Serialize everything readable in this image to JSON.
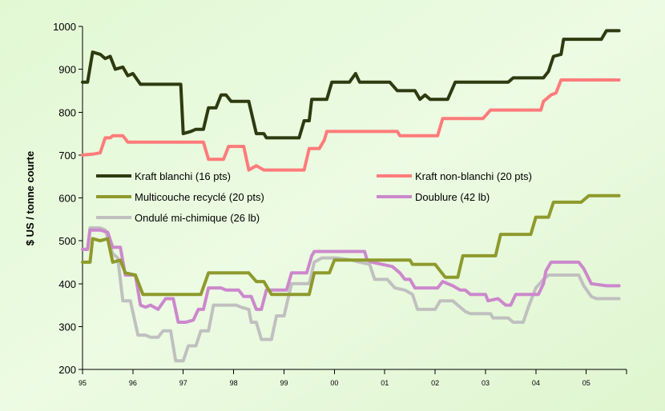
{
  "chart_data": {
    "type": "line",
    "title": "",
    "xlabel": "",
    "ylabel": "$ US / tonne courte",
    "ylim": [
      200,
      1000
    ],
    "yticks": [
      200,
      300,
      400,
      500,
      600,
      700,
      800,
      900,
      1000
    ],
    "xlim": [
      1995,
      2005.8
    ],
    "xticks": [
      {
        "label": "95",
        "value": 1995
      },
      {
        "label": "96",
        "value": 1996
      },
      {
        "label": "97",
        "value": 1997
      },
      {
        "label": "98",
        "value": 1998
      },
      {
        "label": "99",
        "value": 1999
      },
      {
        "label": "00",
        "value": 2000
      },
      {
        "label": "01",
        "value": 2001
      },
      {
        "label": "02",
        "value": 2002
      },
      {
        "label": "03",
        "value": 2003
      },
      {
        "label": "04",
        "value": 2004
      },
      {
        "label": "05",
        "value": 2005
      }
    ],
    "grid": false,
    "legend": "inside-middle",
    "series": [
      {
        "name": "Kraft blanchi (16 pts)",
        "color": "#2e3a10",
        "points": [
          [
            1995.0,
            870
          ],
          [
            1995.1,
            870
          ],
          [
            1995.2,
            940
          ],
          [
            1995.35,
            935
          ],
          [
            1995.45,
            925
          ],
          [
            1995.55,
            930
          ],
          [
            1995.65,
            900
          ],
          [
            1995.8,
            905
          ],
          [
            1995.9,
            885
          ],
          [
            1996.0,
            890
          ],
          [
            1996.15,
            865
          ],
          [
            1996.6,
            865
          ],
          [
            1996.95,
            865
          ],
          [
            1997.0,
            750
          ],
          [
            1997.15,
            755
          ],
          [
            1997.25,
            760
          ],
          [
            1997.4,
            760
          ],
          [
            1997.5,
            810
          ],
          [
            1997.65,
            810
          ],
          [
            1997.75,
            840
          ],
          [
            1997.85,
            840
          ],
          [
            1997.95,
            825
          ],
          [
            1998.3,
            825
          ],
          [
            1998.45,
            750
          ],
          [
            1998.6,
            750
          ],
          [
            1998.65,
            740
          ],
          [
            1999.3,
            740
          ],
          [
            1999.4,
            780
          ],
          [
            1999.5,
            780
          ],
          [
            1999.55,
            830
          ],
          [
            1999.85,
            830
          ],
          [
            1999.95,
            870
          ],
          [
            2000.3,
            870
          ],
          [
            2000.42,
            890
          ],
          [
            2000.5,
            870
          ],
          [
            2001.1,
            870
          ],
          [
            2001.25,
            850
          ],
          [
            2001.6,
            850
          ],
          [
            2001.7,
            830
          ],
          [
            2001.8,
            840
          ],
          [
            2001.9,
            830
          ],
          [
            2002.25,
            830
          ],
          [
            2002.4,
            870
          ],
          [
            2003.45,
            870
          ],
          [
            2003.55,
            880
          ],
          [
            2004.15,
            880
          ],
          [
            2004.25,
            895
          ],
          [
            2004.35,
            930
          ],
          [
            2004.5,
            935
          ],
          [
            2004.55,
            970
          ],
          [
            2005.3,
            970
          ],
          [
            2005.4,
            990
          ],
          [
            2005.65,
            990
          ]
        ]
      },
      {
        "name": "Kraft non-blanchi (20 pts)",
        "color": "#ff7b7b",
        "points": [
          [
            1995.0,
            700
          ],
          [
            1995.2,
            702
          ],
          [
            1995.35,
            705
          ],
          [
            1995.45,
            740
          ],
          [
            1995.55,
            740
          ],
          [
            1995.6,
            745
          ],
          [
            1995.8,
            745
          ],
          [
            1995.9,
            730
          ],
          [
            1996.0,
            730
          ],
          [
            1996.9,
            730
          ],
          [
            1997.4,
            730
          ],
          [
            1997.5,
            690
          ],
          [
            1997.8,
            690
          ],
          [
            1997.9,
            720
          ],
          [
            1998.2,
            720
          ],
          [
            1998.3,
            665
          ],
          [
            1998.45,
            675
          ],
          [
            1998.6,
            665
          ],
          [
            1999.4,
            665
          ],
          [
            1999.5,
            715
          ],
          [
            1999.7,
            715
          ],
          [
            1999.8,
            735
          ],
          [
            1999.85,
            755
          ],
          [
            2001.25,
            755
          ],
          [
            2001.3,
            745
          ],
          [
            2002.05,
            745
          ],
          [
            2002.15,
            785
          ],
          [
            2002.95,
            785
          ],
          [
            2003.1,
            805
          ],
          [
            2004.1,
            805
          ],
          [
            2004.15,
            825
          ],
          [
            2004.3,
            840
          ],
          [
            2004.4,
            845
          ],
          [
            2004.5,
            875
          ],
          [
            2005.65,
            875
          ]
        ]
      },
      {
        "name": "Multicouche recyclé (20 pts)",
        "color": "#8e9a2c",
        "points": [
          [
            1995.0,
            450
          ],
          [
            1995.15,
            450
          ],
          [
            1995.2,
            505
          ],
          [
            1995.35,
            500
          ],
          [
            1995.5,
            505
          ],
          [
            1995.6,
            450
          ],
          [
            1995.75,
            455
          ],
          [
            1995.85,
            425
          ],
          [
            1996.05,
            420
          ],
          [
            1996.2,
            375
          ],
          [
            1996.35,
            375
          ],
          [
            1997.35,
            375
          ],
          [
            1997.5,
            425
          ],
          [
            1998.3,
            425
          ],
          [
            1998.45,
            405
          ],
          [
            1998.6,
            405
          ],
          [
            1998.75,
            375
          ],
          [
            1999.5,
            375
          ],
          [
            1999.6,
            425
          ],
          [
            1999.9,
            425
          ],
          [
            2000.0,
            455
          ],
          [
            2001.0,
            455
          ],
          [
            2001.1,
            455
          ],
          [
            2001.5,
            455
          ],
          [
            2001.55,
            445
          ],
          [
            2002.0,
            445
          ],
          [
            2002.1,
            430
          ],
          [
            2002.2,
            415
          ],
          [
            2002.45,
            415
          ],
          [
            2002.55,
            465
          ],
          [
            2002.85,
            465
          ],
          [
            2003.2,
            465
          ],
          [
            2003.3,
            515
          ],
          [
            2003.9,
            515
          ],
          [
            2004.0,
            555
          ],
          [
            2004.25,
            555
          ],
          [
            2004.35,
            590
          ],
          [
            2004.9,
            590
          ],
          [
            2005.05,
            605
          ],
          [
            2005.65,
            605
          ]
        ]
      },
      {
        "name": "Doublure (42 lb)",
        "color": "#cc88cc",
        "points": [
          [
            1995.0,
            480
          ],
          [
            1995.1,
            480
          ],
          [
            1995.15,
            525
          ],
          [
            1995.35,
            525
          ],
          [
            1995.5,
            520
          ],
          [
            1995.6,
            485
          ],
          [
            1995.75,
            485
          ],
          [
            1995.85,
            420
          ],
          [
            1996.05,
            420
          ],
          [
            1996.15,
            350
          ],
          [
            1996.25,
            345
          ],
          [
            1996.35,
            350
          ],
          [
            1996.5,
            340
          ],
          [
            1996.65,
            365
          ],
          [
            1996.8,
            365
          ],
          [
            1996.9,
            310
          ],
          [
            1997.05,
            310
          ],
          [
            1997.2,
            315
          ],
          [
            1997.3,
            340
          ],
          [
            1997.4,
            340
          ],
          [
            1997.5,
            390
          ],
          [
            1997.75,
            390
          ],
          [
            1997.85,
            385
          ],
          [
            1998.1,
            385
          ],
          [
            1998.2,
            370
          ],
          [
            1998.35,
            370
          ],
          [
            1998.45,
            340
          ],
          [
            1998.55,
            340
          ],
          [
            1998.65,
            385
          ],
          [
            1999.05,
            385
          ],
          [
            1999.15,
            425
          ],
          [
            1999.45,
            425
          ],
          [
            1999.55,
            465
          ],
          [
            1999.6,
            475
          ],
          [
            2000.05,
            475
          ],
          [
            2000.6,
            475
          ],
          [
            2000.65,
            455
          ],
          [
            2000.75,
            450
          ],
          [
            2001.15,
            440
          ],
          [
            2001.3,
            425
          ],
          [
            2001.4,
            410
          ],
          [
            2001.5,
            410
          ],
          [
            2001.6,
            390
          ],
          [
            2001.8,
            390
          ],
          [
            2002.05,
            390
          ],
          [
            2002.15,
            405
          ],
          [
            2002.35,
            395
          ],
          [
            2002.5,
            385
          ],
          [
            2002.6,
            385
          ],
          [
            2002.7,
            375
          ],
          [
            2003.0,
            375
          ],
          [
            2003.05,
            360
          ],
          [
            2003.25,
            365
          ],
          [
            2003.4,
            350
          ],
          [
            2003.5,
            350
          ],
          [
            2003.6,
            375
          ],
          [
            2004.05,
            375
          ],
          [
            2004.15,
            400
          ],
          [
            2004.2,
            430
          ],
          [
            2004.3,
            450
          ],
          [
            2004.85,
            450
          ],
          [
            2004.95,
            435
          ],
          [
            2005.1,
            400
          ],
          [
            2005.4,
            395
          ],
          [
            2005.65,
            395
          ]
        ]
      },
      {
        "name": "Ondulé mi-chimique (26 lb)",
        "color": "#c0c0c0",
        "points": [
          [
            1995.0,
            480
          ],
          [
            1995.1,
            480
          ],
          [
            1995.15,
            530
          ],
          [
            1995.35,
            530
          ],
          [
            1995.45,
            525
          ],
          [
            1995.6,
            470
          ],
          [
            1995.7,
            460
          ],
          [
            1995.8,
            360
          ],
          [
            1995.95,
            360
          ],
          [
            1996.1,
            280
          ],
          [
            1996.25,
            280
          ],
          [
            1996.35,
            275
          ],
          [
            1996.5,
            275
          ],
          [
            1996.6,
            290
          ],
          [
            1996.75,
            290
          ],
          [
            1996.85,
            220
          ],
          [
            1997.0,
            220
          ],
          [
            1997.1,
            255
          ],
          [
            1997.25,
            255
          ],
          [
            1997.35,
            290
          ],
          [
            1997.5,
            290
          ],
          [
            1997.6,
            350
          ],
          [
            1998.05,
            350
          ],
          [
            1998.15,
            345
          ],
          [
            1998.3,
            340
          ],
          [
            1998.35,
            310
          ],
          [
            1998.45,
            310
          ],
          [
            1998.55,
            270
          ],
          [
            1998.75,
            270
          ],
          [
            1998.85,
            325
          ],
          [
            1999.0,
            325
          ],
          [
            1999.15,
            400
          ],
          [
            1999.5,
            400
          ],
          [
            1999.6,
            450
          ],
          [
            1999.75,
            460
          ],
          [
            2000.05,
            460
          ],
          [
            2000.35,
            455
          ],
          [
            2000.5,
            450
          ],
          [
            2000.7,
            445
          ],
          [
            2000.8,
            410
          ],
          [
            2001.05,
            410
          ],
          [
            2001.2,
            390
          ],
          [
            2001.4,
            385
          ],
          [
            2001.55,
            375
          ],
          [
            2001.65,
            340
          ],
          [
            2002.0,
            340
          ],
          [
            2002.1,
            360
          ],
          [
            2002.35,
            360
          ],
          [
            2002.45,
            350
          ],
          [
            2002.6,
            335
          ],
          [
            2002.7,
            330
          ],
          [
            2003.1,
            330
          ],
          [
            2003.15,
            320
          ],
          [
            2003.45,
            320
          ],
          [
            2003.55,
            310
          ],
          [
            2003.75,
            310
          ],
          [
            2003.85,
            345
          ],
          [
            2004.0,
            390
          ],
          [
            2004.15,
            410
          ],
          [
            2004.25,
            420
          ],
          [
            2004.85,
            420
          ],
          [
            2004.95,
            395
          ],
          [
            2005.1,
            370
          ],
          [
            2005.2,
            365
          ],
          [
            2005.65,
            365
          ]
        ]
      }
    ]
  }
}
